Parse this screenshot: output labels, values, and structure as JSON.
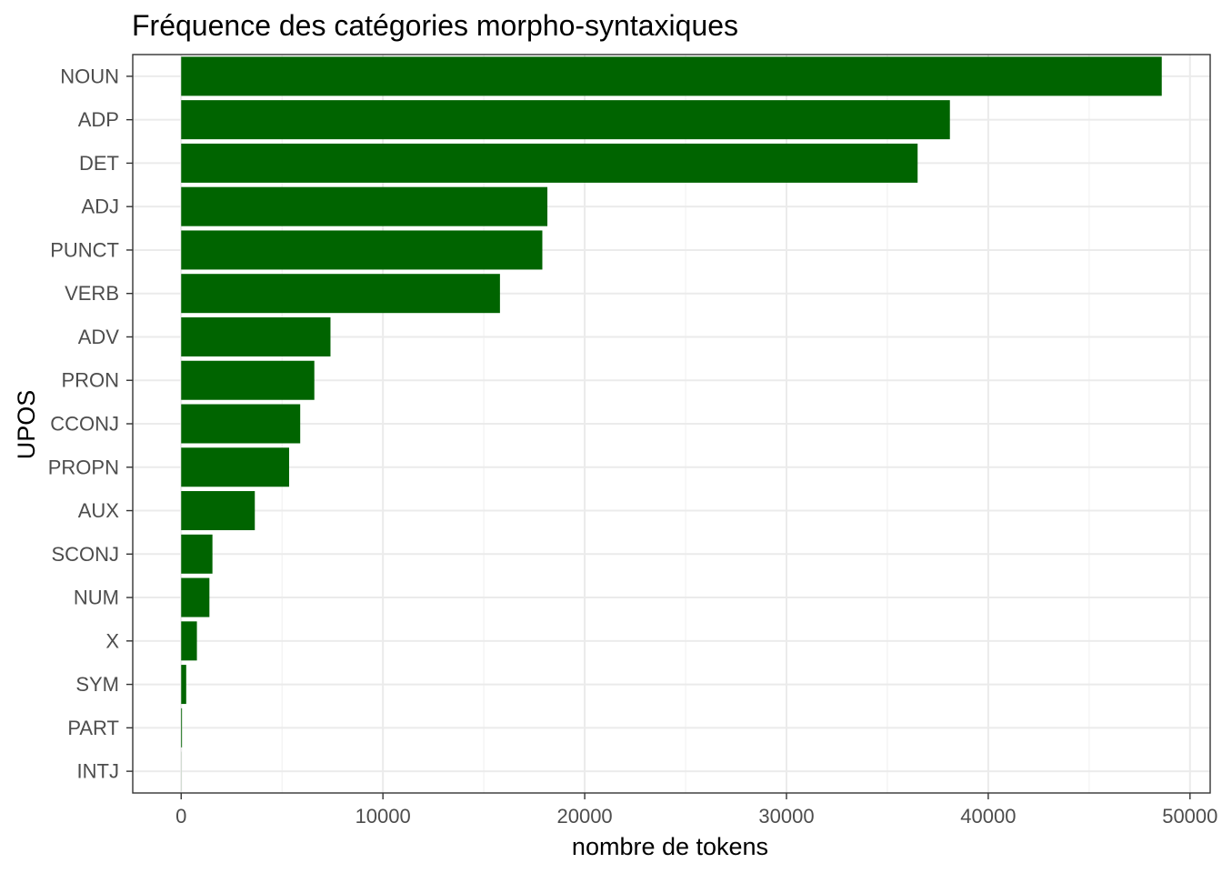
{
  "chart_data": {
    "type": "bar",
    "orientation": "horizontal",
    "title": "Fréquence des catégories morpho-syntaxiques",
    "xlabel": "nombre de tokens",
    "ylabel": "UPOS",
    "categories": [
      "NOUN",
      "ADP",
      "DET",
      "ADJ",
      "PUNCT",
      "VERB",
      "ADV",
      "PRON",
      "CCONJ",
      "PROPN",
      "AUX",
      "SCONJ",
      "NUM",
      "X",
      "SYM",
      "PART",
      "INTJ"
    ],
    "values": [
      48600,
      38100,
      36500,
      18150,
      17900,
      15800,
      7400,
      6600,
      5900,
      5350,
      3650,
      1550,
      1400,
      780,
      250,
      40,
      5
    ],
    "xlim": [
      -2400,
      51000
    ],
    "x_ticks": [
      0,
      10000,
      20000,
      30000,
      40000,
      50000
    ],
    "x_tick_labels": [
      "0",
      "10000",
      "20000",
      "30000",
      "40000",
      "50000"
    ],
    "grid": true,
    "bar_color": "#006400",
    "legend": "none"
  }
}
